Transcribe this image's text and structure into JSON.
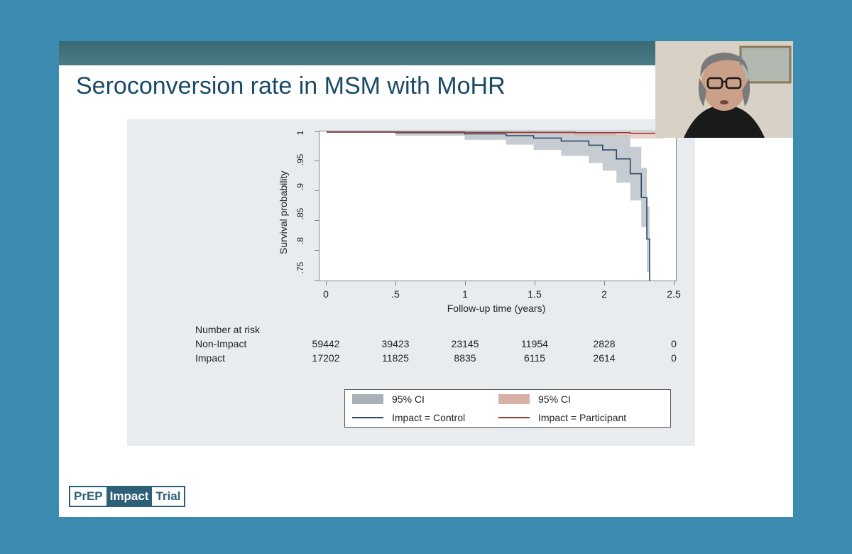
{
  "outer_bg": "#3b8cb0",
  "slide": {
    "title": "Seroconversion rate in MSM with MoHR",
    "title_color": "#1a4a66",
    "header_bar_color": "#3a6a74"
  },
  "chart": {
    "type": "kaplan-meier",
    "background_color": "#e8ecef",
    "plot_bg": "#ffffff",
    "border_color": "#80858a",
    "ylabel": "Survival probability",
    "xlabel": "Follow-up time (years)",
    "label_fontsize": 14,
    "ylim": [
      0.75,
      1.0
    ],
    "yticks": [
      0.75,
      0.8,
      0.85,
      0.9,
      0.95,
      1.0
    ],
    "ytick_labels": [
      ".75",
      ".8",
      ".85",
      ".9",
      ".95",
      "1"
    ],
    "xlim": [
      0,
      2.5
    ],
    "xticks": [
      0,
      0.5,
      1,
      1.5,
      2,
      2.5
    ],
    "xtick_labels": [
      "0",
      ".5",
      "1",
      "1.5",
      "2",
      "2.5"
    ],
    "series": {
      "control": {
        "line_color": "#2a4a6a",
        "ci_color": "#a8b0b8",
        "ci_opacity": 0.65,
        "points": [
          {
            "x": 0,
            "y": 1.0
          },
          {
            "x": 0.5,
            "y": 0.999
          },
          {
            "x": 1.0,
            "y": 0.997
          },
          {
            "x": 1.3,
            "y": 0.994
          },
          {
            "x": 1.5,
            "y": 0.99
          },
          {
            "x": 1.7,
            "y": 0.985
          },
          {
            "x": 1.9,
            "y": 0.978
          },
          {
            "x": 2.0,
            "y": 0.97
          },
          {
            "x": 2.1,
            "y": 0.955
          },
          {
            "x": 2.2,
            "y": 0.93
          },
          {
            "x": 2.28,
            "y": 0.89
          },
          {
            "x": 2.32,
            "y": 0.82
          },
          {
            "x": 2.34,
            "y": 0.75
          }
        ],
        "ci_halfwidth_end": 0.06
      },
      "participant": {
        "line_color": "#9a3a3a",
        "ci_color": "#d8b0a8",
        "ci_opacity": 0.55,
        "points": [
          {
            "x": 0,
            "y": 1.0
          },
          {
            "x": 1.0,
            "y": 0.9995
          },
          {
            "x": 1.8,
            "y": 0.999
          },
          {
            "x": 2.2,
            "y": 0.998
          },
          {
            "x": 2.45,
            "y": 0.997
          }
        ],
        "ci_halfwidth_end": 0.012
      }
    }
  },
  "risk_table": {
    "header": "Number at risk",
    "rows": [
      {
        "label": "Non-Impact",
        "values": [
          "59442",
          "39423",
          "23145",
          "11954",
          "2828",
          "0"
        ]
      },
      {
        "label": "Impact",
        "values": [
          "17202",
          "11825",
          "8835",
          "6115",
          "2614",
          "0"
        ]
      }
    ]
  },
  "legend": {
    "items_row1": [
      {
        "swatch_type": "block",
        "color": "#a8b0b8",
        "label": "95% CI"
      },
      {
        "swatch_type": "block",
        "color": "#d8b0a8",
        "label": "95% CI"
      }
    ],
    "items_row2": [
      {
        "swatch_type": "line",
        "color": "#2a4a6a",
        "label": "Impact = Control"
      },
      {
        "swatch_type": "line",
        "color": "#9a3a3a",
        "label": "Impact = Participant"
      }
    ]
  },
  "logo": {
    "part1": "PrEP",
    "part2": "Impact",
    "part3": "Trial"
  }
}
